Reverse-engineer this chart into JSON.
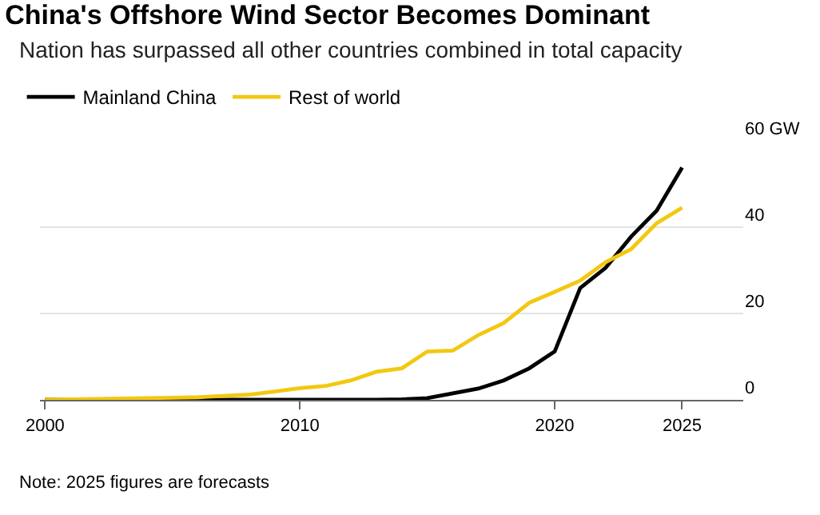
{
  "chart_data": {
    "type": "line",
    "title": "China's Offshore Wind Sector Becomes Dominant",
    "subtitle": "Nation has surpassed all other countries combined in total capacity",
    "x": [
      2000,
      2001,
      2002,
      2003,
      2004,
      2005,
      2006,
      2007,
      2008,
      2009,
      2010,
      2011,
      2012,
      2013,
      2014,
      2015,
      2016,
      2017,
      2018,
      2019,
      2020,
      2021,
      2022,
      2023,
      2024,
      2025
    ],
    "series": [
      {
        "name": "Mainland China",
        "color": "#000000",
        "values": [
          0,
          0,
          0,
          0,
          0,
          0,
          0,
          0,
          0,
          0,
          0,
          0,
          0,
          0,
          0.1,
          0.4,
          1.5,
          2.6,
          4.5,
          7.3,
          11.2,
          25.9,
          30.6,
          37.8,
          43.8,
          53.8
        ]
      },
      {
        "name": "Rest of world",
        "color": "#f2c811",
        "values": [
          0,
          0.1,
          0.2,
          0.3,
          0.4,
          0.5,
          0.6,
          0.9,
          1.2,
          1.9,
          2.7,
          3.2,
          4.5,
          6.5,
          7.3,
          11.2,
          11.4,
          15,
          17.8,
          22.5,
          25,
          27.6,
          31.9,
          34.9,
          40.9,
          44.5
        ]
      }
    ],
    "xlim": [
      1999.8,
      2027.4
    ],
    "xticks": [
      2000,
      2010,
      2020,
      2025
    ],
    "ylim": [
      0,
      60
    ],
    "yticks": [
      0,
      20,
      40,
      {
        "value": 60,
        "label": "60 GW"
      }
    ],
    "grid": "y",
    "legend": "top left",
    "marker": "none",
    "line_style": "solid",
    "annotations": [
      "Note: 2025 figures are forecasts"
    ]
  }
}
